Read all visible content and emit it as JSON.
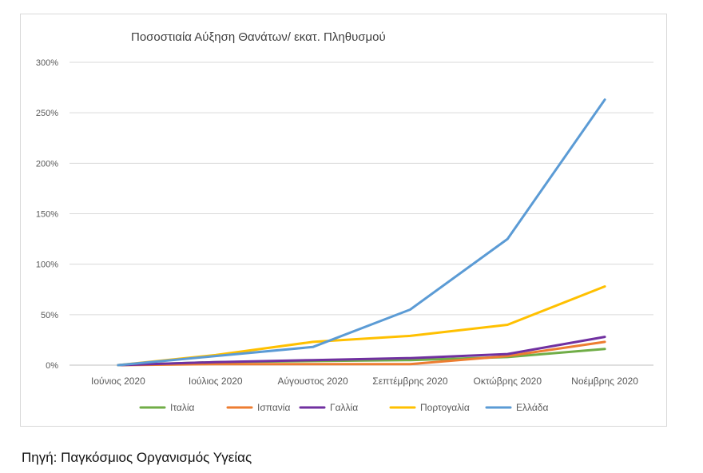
{
  "chart_data": {
    "type": "line",
    "title": "Ποσοστιαία Αύξηση Θανάτων/ εκατ. Πληθυσμού",
    "xlabel": "",
    "ylabel": "",
    "categories": [
      "Ιούνιος 2020",
      "Ιούλιος 2020",
      "Αύγουστος 2020",
      "Σεπτέμβρης 2020",
      "Οκτώβρης 2020",
      "Νοέμβρης 2020"
    ],
    "y_ticks": [
      "0%",
      "50%",
      "100%",
      "150%",
      "200%",
      "250%",
      "300%"
    ],
    "ylim": [
      0,
      300
    ],
    "grid": true,
    "legend_position": "bottom",
    "series": [
      {
        "name": "Ιταλία",
        "color": "#70ad47",
        "values": [
          0,
          3,
          4,
          5,
          8,
          16
        ]
      },
      {
        "name": "Ισπανία",
        "color": "#ed7d31",
        "values": [
          0,
          1,
          1,
          1,
          9,
          23
        ]
      },
      {
        "name": "Γαλλία",
        "color": "#7030a0",
        "values": [
          0,
          3,
          5,
          7,
          11,
          28
        ]
      },
      {
        "name": "Πορτογαλία",
        "color": "#ffc000",
        "values": [
          0,
          10,
          23,
          29,
          40,
          78
        ]
      },
      {
        "name": "Ελλάδα",
        "color": "#5b9bd5",
        "values": [
          0,
          9,
          18,
          55,
          125,
          263
        ]
      }
    ]
  },
  "source_text": "Πηγή: Παγκόσμιος Οργανισμός Υγείας"
}
